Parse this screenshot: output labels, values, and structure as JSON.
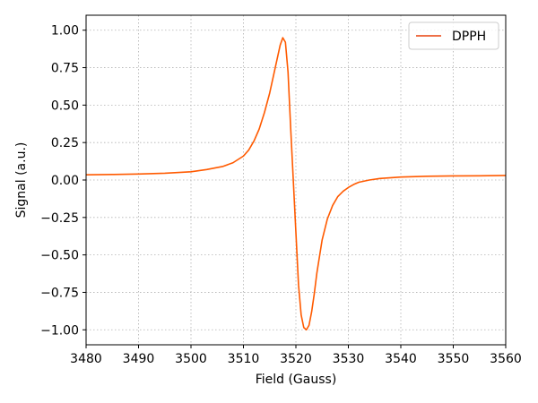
{
  "chart_data": {
    "type": "line",
    "xlabel": "Field (Gauss)",
    "ylabel": "Signal (a.u.)",
    "xlim": [
      3480,
      3560
    ],
    "ylim": [
      -1.1,
      1.1
    ],
    "x_ticks": [
      3480,
      3490,
      3500,
      3510,
      3520,
      3530,
      3540,
      3550,
      3560
    ],
    "x_tick_labels": [
      "3480",
      "3490",
      "3500",
      "3510",
      "3520",
      "3530",
      "3540",
      "3550",
      "3560"
    ],
    "y_ticks": [
      1.0,
      0.75,
      0.5,
      0.25,
      0.0,
      -0.25,
      -0.5,
      -0.75,
      -1.0
    ],
    "y_tick_labels": [
      "1.00",
      "0.75",
      "0.50",
      "0.25",
      "0.00",
      "−0.25",
      "−0.50",
      "−0.75",
      "−1.00"
    ],
    "grid": true,
    "legend_position": "top-right",
    "series": [
      {
        "name": "DPPH",
        "color": "#ff5a00",
        "legend_color": "#e8400c",
        "x": [
          3480,
          3485,
          3490,
          3495,
          3500,
          3503,
          3506,
          3508,
          3510,
          3511,
          3512,
          3513,
          3514,
          3515,
          3516,
          3517,
          3517.5,
          3518,
          3518.5,
          3519,
          3519.5,
          3520,
          3520.5,
          3521,
          3521.5,
          3522,
          3522.5,
          3523,
          3523.5,
          3524,
          3525,
          3526,
          3527,
          3528,
          3529,
          3530,
          3531,
          3532,
          3534,
          3536,
          3540,
          3545,
          3550,
          3555,
          3560
        ],
        "y": [
          0.035,
          0.037,
          0.04,
          0.045,
          0.055,
          0.07,
          0.09,
          0.115,
          0.16,
          0.2,
          0.26,
          0.34,
          0.45,
          0.58,
          0.74,
          0.9,
          0.95,
          0.92,
          0.72,
          0.35,
          0.0,
          -0.35,
          -0.7,
          -0.9,
          -0.985,
          -1.0,
          -0.97,
          -0.88,
          -0.76,
          -0.62,
          -0.4,
          -0.26,
          -0.17,
          -0.11,
          -0.075,
          -0.05,
          -0.03,
          -0.015,
          0.0,
          0.01,
          0.02,
          0.025,
          0.027,
          0.028,
          0.03
        ]
      }
    ]
  }
}
